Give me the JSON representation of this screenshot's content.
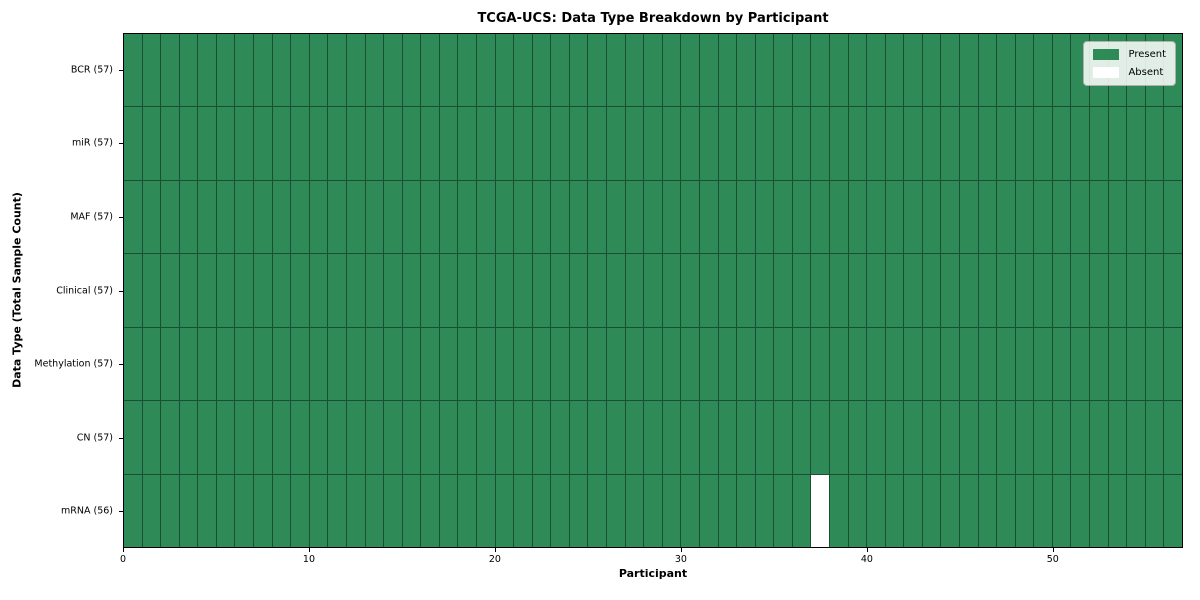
{
  "figure": {
    "background": "#ffffff"
  },
  "chart_data": {
    "type": "heatmap",
    "title": "TCGA-UCS: Data Type Breakdown by Participant",
    "xlabel": "Participant",
    "ylabel": "Data Type (Total Sample Count)",
    "x_ticks": [
      0,
      10,
      20,
      30,
      40,
      50
    ],
    "xlim": [
      0,
      57
    ],
    "n_participants": 57,
    "rows": [
      {
        "name": "BCR",
        "label": "BCR (57)",
        "present_count": 57,
        "absent_participants": []
      },
      {
        "name": "miR",
        "label": "miR (57)",
        "present_count": 57,
        "absent_participants": []
      },
      {
        "name": "MAF",
        "label": "MAF (57)",
        "present_count": 57,
        "absent_participants": []
      },
      {
        "name": "Clinical",
        "label": "Clinical (57)",
        "present_count": 57,
        "absent_participants": []
      },
      {
        "name": "Methylation",
        "label": "Methylation (57)",
        "present_count": 57,
        "absent_participants": []
      },
      {
        "name": "CN",
        "label": "CN (57)",
        "present_count": 57,
        "absent_participants": []
      },
      {
        "name": "mRNA",
        "label": "mRNA (56)",
        "present_count": 56,
        "absent_participants": [
          37
        ]
      }
    ],
    "legend": [
      {
        "label": "Present",
        "color": "#2e8b57"
      },
      {
        "label": "Absent",
        "color": "#ffffff"
      }
    ],
    "colors": {
      "present": "#2e8b57",
      "absent": "#ffffff",
      "cell_edge": "#1d4d33",
      "spine": "#000000"
    },
    "legend_position": "upper right",
    "grid": "cell-borders"
  }
}
